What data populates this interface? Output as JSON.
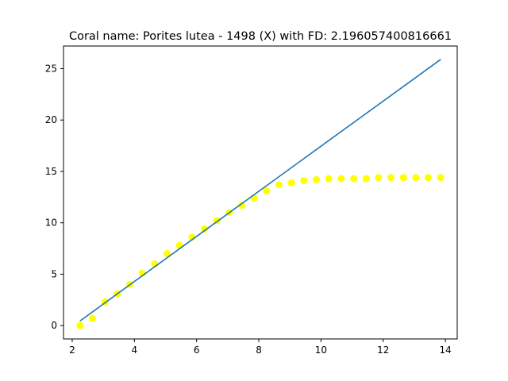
{
  "chart_data": {
    "type": "scatter",
    "title": "Coral name: Porites lutea - 1498 (X) with FD: 2.196057400816661",
    "xlabel": "",
    "ylabel": "",
    "xlim": [
      1.72,
      14.38
    ],
    "ylim": [
      -1.3,
      27.2
    ],
    "xticks": [
      2,
      4,
      6,
      8,
      10,
      12,
      14
    ],
    "yticks": [
      0,
      5,
      10,
      15,
      20,
      25
    ],
    "grid": false,
    "series": [
      {
        "kind": "scatter",
        "color": "#ffff00",
        "points": [
          {
            "x": 2.25,
            "y": 0.0
          },
          {
            "x": 2.65,
            "y": 0.7
          },
          {
            "x": 3.05,
            "y": 2.3
          },
          {
            "x": 3.45,
            "y": 3.1
          },
          {
            "x": 3.85,
            "y": 4.0
          },
          {
            "x": 4.25,
            "y": 5.1
          },
          {
            "x": 4.65,
            "y": 6.0
          },
          {
            "x": 5.05,
            "y": 7.0
          },
          {
            "x": 5.45,
            "y": 7.8
          },
          {
            "x": 5.85,
            "y": 8.6
          },
          {
            "x": 6.25,
            "y": 9.4
          },
          {
            "x": 6.65,
            "y": 10.2
          },
          {
            "x": 7.05,
            "y": 11.0
          },
          {
            "x": 7.45,
            "y": 11.7
          },
          {
            "x": 7.85,
            "y": 12.4
          },
          {
            "x": 8.25,
            "y": 13.1
          },
          {
            "x": 8.65,
            "y": 13.7
          },
          {
            "x": 9.05,
            "y": 13.9
          },
          {
            "x": 9.45,
            "y": 14.1
          },
          {
            "x": 9.85,
            "y": 14.2
          },
          {
            "x": 10.25,
            "y": 14.3
          },
          {
            "x": 10.65,
            "y": 14.3
          },
          {
            "x": 11.05,
            "y": 14.3
          },
          {
            "x": 11.45,
            "y": 14.3
          },
          {
            "x": 11.85,
            "y": 14.4
          },
          {
            "x": 12.25,
            "y": 14.4
          },
          {
            "x": 12.65,
            "y": 14.4
          },
          {
            "x": 13.05,
            "y": 14.4
          },
          {
            "x": 13.45,
            "y": 14.4
          },
          {
            "x": 13.85,
            "y": 14.4
          }
        ]
      },
      {
        "kind": "line",
        "color": "#1f77b4",
        "points": [
          {
            "x": 2.25,
            "y": 0.45
          },
          {
            "x": 13.85,
            "y": 25.9
          }
        ]
      }
    ]
  }
}
